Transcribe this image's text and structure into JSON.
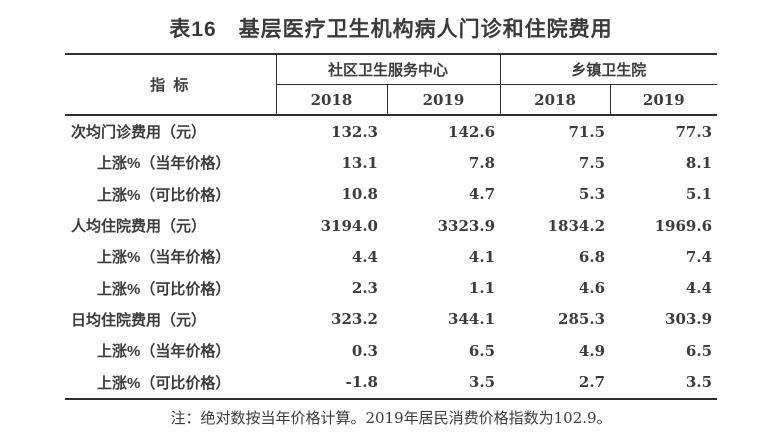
{
  "title": "表16　基层医疗卫生机构病人门诊和住院费用",
  "table": {
    "indicator_header": "指  标",
    "groups": [
      {
        "label": "社区卫生服务中心",
        "years": [
          "2018",
          "2019"
        ]
      },
      {
        "label": "乡镇卫生院",
        "years": [
          "2018",
          "2019"
        ]
      }
    ],
    "rows": [
      {
        "label": "次均门诊费用（元）",
        "indent": false,
        "values": [
          "132.3",
          "142.6",
          "71.5",
          "77.3"
        ]
      },
      {
        "label": "上涨%（当年价格）",
        "indent": true,
        "values": [
          "13.1",
          "7.8",
          "7.5",
          "8.1"
        ]
      },
      {
        "label": "上涨%（可比价格）",
        "indent": true,
        "values": [
          "10.8",
          "4.7",
          "5.3",
          "5.1"
        ]
      },
      {
        "label": "人均住院费用（元）",
        "indent": false,
        "values": [
          "3194.0",
          "3323.9",
          "1834.2",
          "1969.6"
        ]
      },
      {
        "label": "上涨%（当年价格）",
        "indent": true,
        "values": [
          "4.4",
          "4.1",
          "6.8",
          "7.4"
        ]
      },
      {
        "label": "上涨%（可比价格）",
        "indent": true,
        "values": [
          "2.3",
          "1.1",
          "4.6",
          "4.4"
        ]
      },
      {
        "label": "日均住院费用（元）",
        "indent": false,
        "values": [
          "323.2",
          "344.1",
          "285.3",
          "303.9"
        ]
      },
      {
        "label": "上涨%（当年价格）",
        "indent": true,
        "values": [
          "0.3",
          "6.5",
          "4.9",
          "6.5"
        ]
      },
      {
        "label": "上涨%（可比价格）",
        "indent": true,
        "values": [
          "-1.8",
          "3.5",
          "2.7",
          "3.5"
        ]
      }
    ]
  },
  "note": "注：绝对数按当年价格计算。2019年居民消费价格指数为102.9。",
  "colors": {
    "text": "#3c3c3c",
    "border": "#2f2f2f",
    "background": "#ffffff"
  }
}
